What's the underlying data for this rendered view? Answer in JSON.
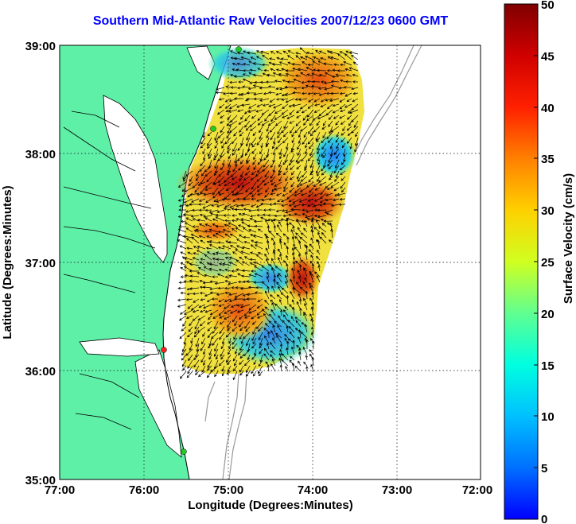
{
  "title": "Southern Mid-Atlantic Raw Velocities 2007/12/23 0600 GMT",
  "xaxis": {
    "label": "Longitude (Degrees:Minutes)",
    "ticks": [
      "77:00",
      "76:00",
      "75:00",
      "74:00",
      "73:00",
      "72:00"
    ]
  },
  "yaxis": {
    "label": "Latitude (Degrees:Minutes)",
    "ticks": [
      "39:00",
      "38:00",
      "37:00",
      "36:00",
      "35:00"
    ]
  },
  "colorbar": {
    "label": "Surface Velocity (cm/s)",
    "ticks": [
      "50",
      "45",
      "40",
      "35",
      "30",
      "25",
      "20",
      "15",
      "10",
      "5",
      "0"
    ]
  },
  "colors": {
    "land": "#5ff0a8",
    "water": "#ffffff",
    "title": "#0000ff",
    "contour": "#888888",
    "station_green": "#22cc22",
    "station_red": "#ff2222"
  }
}
